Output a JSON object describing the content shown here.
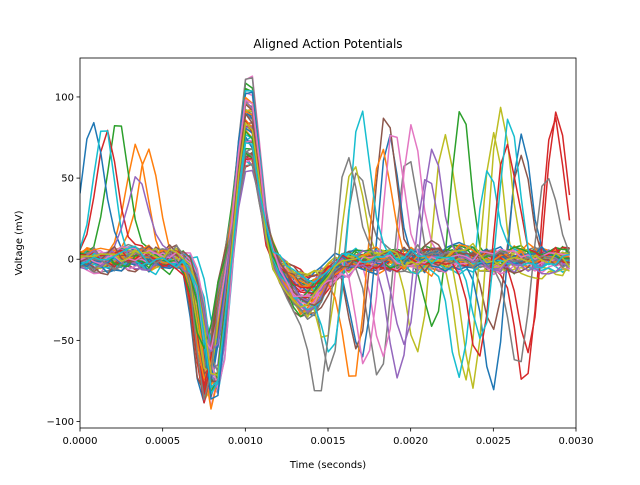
{
  "chart_data": {
    "type": "line",
    "title": "Aligned Action Potentials",
    "xlabel": "Time (seconds)",
    "ylabel": "Voltage (mV)",
    "xlim": [
      0.0,
      0.003
    ],
    "ylim": [
      -104,
      124
    ],
    "xticks": [
      {
        "value": 0.0,
        "label": "0.0000"
      },
      {
        "value": 0.0005,
        "label": "0.0005"
      },
      {
        "value": 0.001,
        "label": "0.0010"
      },
      {
        "value": 0.0015,
        "label": "0.0015"
      },
      {
        "value": 0.002,
        "label": "0.0020"
      },
      {
        "value": 0.0025,
        "label": "0.0025"
      },
      {
        "value": 0.003,
        "label": "0.0030"
      }
    ],
    "yticks": [
      {
        "value": 100,
        "label": "100"
      },
      {
        "value": 50,
        "label": "50"
      },
      {
        "value": 0,
        "label": "0"
      },
      {
        "value": -50,
        "label": "−50"
      },
      {
        "value": -100,
        "label": "−100"
      }
    ],
    "grid": false,
    "legend": "none",
    "sample_interval_s": 4.17e-05,
    "samples_per_trace": 72,
    "trace_count": 60,
    "colors": [
      "#1f77b4",
      "#ff7f0e",
      "#2ca02c",
      "#d62728",
      "#9467bd",
      "#8c564b",
      "#e377c2",
      "#7f7f7f",
      "#bcbd22",
      "#17becf"
    ],
    "spike_peak_time_s": 0.00102,
    "peak_range_mv": [
      60,
      112
    ],
    "trough_range_mv": [
      -92,
      -50
    ]
  }
}
